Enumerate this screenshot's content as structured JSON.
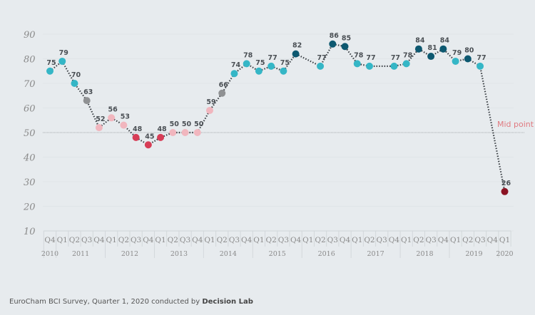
{
  "chart_data": {
    "type": "line",
    "title": "",
    "xlabel": "",
    "ylabel": "",
    "ylim": [
      10,
      90
    ],
    "yticks": [
      90,
      80,
      70,
      60,
      50,
      40,
      30,
      20,
      10
    ],
    "quarters": [
      "Q4",
      "Q1",
      "Q2",
      "Q3",
      "Q4",
      "Q1",
      "Q2",
      "Q3",
      "Q4",
      "Q1",
      "Q2",
      "Q3",
      "Q4",
      "Q1",
      "Q2",
      "Q3",
      "Q4",
      "Q1",
      "Q2",
      "Q3",
      "Q4",
      "Q1",
      "Q2",
      "Q3",
      "Q4",
      "Q1",
      "Q2",
      "Q3",
      "Q4",
      "Q1",
      "Q2",
      "Q3",
      "Q4",
      "Q1",
      "Q2",
      "Q3",
      "Q4",
      "Q1"
    ],
    "years": [
      {
        "label": "2010",
        "start": 0,
        "end": 0
      },
      {
        "label": "2011",
        "start": 1,
        "end": 4
      },
      {
        "label": "2012",
        "start": 5,
        "end": 8
      },
      {
        "label": "2013",
        "start": 9,
        "end": 12
      },
      {
        "label": "2014",
        "start": 13,
        "end": 16
      },
      {
        "label": "2015",
        "start": 17,
        "end": 20
      },
      {
        "label": "2016",
        "start": 21,
        "end": 24
      },
      {
        "label": "2017",
        "start": 25,
        "end": 28
      },
      {
        "label": "2018",
        "start": 29,
        "end": 32
      },
      {
        "label": "2019",
        "start": 33,
        "end": 36
      },
      {
        "label": "2020",
        "start": 37,
        "end": 37
      }
    ],
    "values": [
      75,
      79,
      70,
      63,
      52,
      56,
      53,
      48,
      45,
      48,
      50,
      50,
      50,
      59,
      66,
      74,
      78,
      75,
      77,
      75,
      82,
      null,
      77,
      86,
      85,
      78,
      77,
      null,
      77,
      78,
      84,
      81,
      84,
      79,
      80,
      77,
      null,
      26
    ],
    "reference_line": {
      "value": 50,
      "label": "Mid point",
      "color": "#e07a80"
    },
    "colors": {
      "teal": "#35b6c6",
      "dark_teal": "#0d5870",
      "grey": "#8f9193",
      "pink": "#f1b6be",
      "red": "#d73d56",
      "dark_red": "#8a1222",
      "line": "#3a3f44"
    }
  },
  "footer": {
    "text": "EuroCham BCI Survey, Quarter 1, 2020 conducted by ",
    "bold": "Decision Lab"
  }
}
